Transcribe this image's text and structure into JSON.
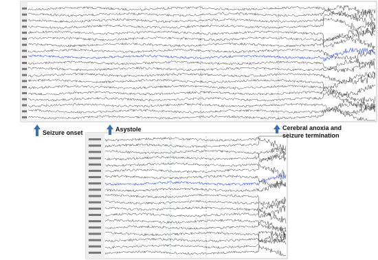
{
  "annotations": [
    {
      "label": "Seizure onset"
    },
    {
      "label": "Asystole"
    },
    {
      "label_lines": [
        "Cerebral anoxia and",
        "seizure termination"
      ]
    }
  ]
}
